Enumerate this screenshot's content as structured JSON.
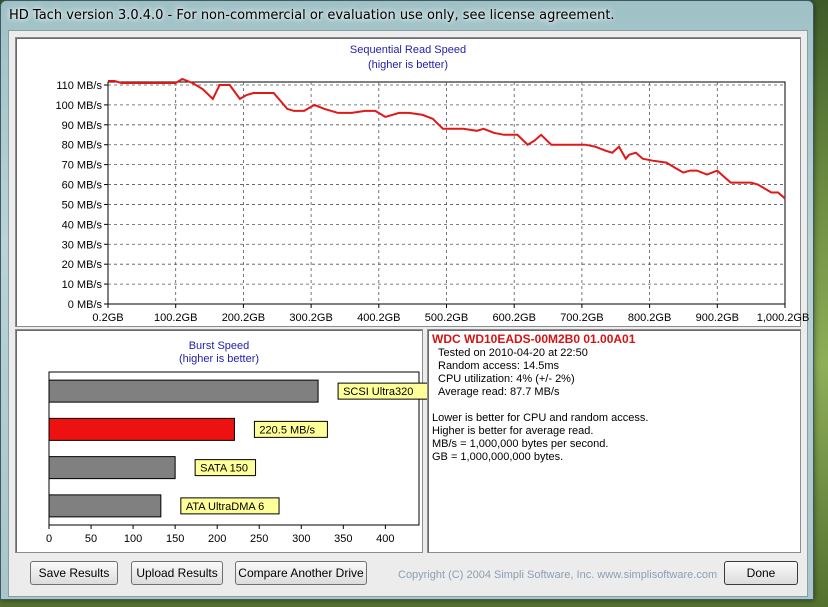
{
  "window": {
    "title": "HD Tach version 3.0.4.0  - For non-commercial or evaluation use only, see license agreement."
  },
  "sequential": {
    "title": "Sequential Read Speed",
    "subtitle": "(higher is better)"
  },
  "burst": {
    "title": "Burst Speed",
    "subtitle": "(higher is better)"
  },
  "chart_data": [
    {
      "type": "line",
      "title": "Sequential Read Speed",
      "subtitle": "(higher is better)",
      "xlabel": "",
      "ylabel": "",
      "x_tick_labels": [
        "0.2GB",
        "100.2GB",
        "200.2GB",
        "300.2GB",
        "400.2GB",
        "500.2GB",
        "600.2GB",
        "700.2GB",
        "800.2GB",
        "900.2GB",
        "1,000.2GB"
      ],
      "y_tick_labels": [
        "0 MB/s",
        "10 MB/s",
        "20 MB/s",
        "30 MB/s",
        "40 MB/s",
        "50 MB/s",
        "60 MB/s",
        "70 MB/s",
        "80 MB/s",
        "90 MB/s",
        "100 MB/s",
        "110 MB/s"
      ],
      "xlim": [
        0.2,
        1000.2
      ],
      "ylim": [
        0,
        110
      ],
      "grid": true,
      "series_color": "#e01818",
      "x": [
        0.2,
        10,
        20,
        50,
        90,
        100,
        110,
        125,
        140,
        155,
        165,
        180,
        195,
        205,
        215,
        225,
        245,
        265,
        275,
        290,
        305,
        320,
        340,
        360,
        380,
        395,
        410,
        420,
        430,
        445,
        465,
        480,
        495,
        505,
        525,
        545,
        555,
        570,
        585,
        605,
        620,
        630,
        640,
        655,
        675,
        695,
        705,
        720,
        735,
        745,
        755,
        765,
        770,
        780,
        790,
        805,
        825,
        840,
        850,
        860,
        870,
        885,
        900,
        910,
        920,
        935,
        950,
        960,
        970,
        980,
        990,
        1000.2
      ],
      "y": [
        112,
        112,
        111,
        111,
        111,
        111,
        113,
        111,
        108,
        103,
        110,
        110,
        103,
        105,
        106,
        106,
        106,
        98,
        97,
        97,
        100,
        98,
        96,
        96,
        97,
        97,
        94,
        95,
        96,
        96,
        95,
        93,
        88,
        88,
        88,
        87,
        88,
        86,
        85,
        85,
        80,
        82,
        85,
        80,
        80,
        80,
        80,
        79,
        77,
        76,
        79,
        73,
        75,
        76,
        73,
        72,
        71,
        68,
        66,
        67,
        67,
        65,
        67,
        64,
        61,
        61,
        61,
        60,
        58,
        56,
        56,
        53
      ]
    },
    {
      "type": "bar",
      "orientation": "horizontal",
      "title": "Burst Speed",
      "subtitle": "(higher is better)",
      "x_tick_labels": [
        "0",
        "50",
        "100",
        "150",
        "200",
        "250",
        "300",
        "350",
        "400"
      ],
      "xlim": [
        0,
        440
      ],
      "categories": [
        "SCSI Ultra320",
        "220.5 MB/s",
        "SATA 150",
        "ATA UltraDMA 6"
      ],
      "values": [
        320,
        220.5,
        150,
        133
      ],
      "colors": [
        "#808080",
        "#ee1111",
        "#808080",
        "#808080"
      ],
      "label_color": "#ffff99"
    }
  ],
  "info": {
    "drive": "WDC WD10EADS-00M2B0 01.00A01",
    "lines": [
      "Tested on 2010-04-20 at 22:50",
      "Random access: 14.5ms",
      "CPU utilization: 4% (+/- 2%)",
      "Average read: 87.7 MB/s"
    ],
    "notes": [
      "Lower is better for CPU and random access.",
      "Higher is better for average read.",
      "MB/s = 1,000,000 bytes per second.",
      "GB = 1,000,000,000 bytes."
    ]
  },
  "buttons": {
    "save": {
      "label": "Save Results"
    },
    "upload": {
      "label": "Upload Results"
    },
    "compare": {
      "label": "Compare Another Drive"
    },
    "done": {
      "label": "Done"
    }
  },
  "footer": {
    "copyright": "Copyright (C) 2004 Simpli Software, Inc. www.simplisoftware.com"
  }
}
